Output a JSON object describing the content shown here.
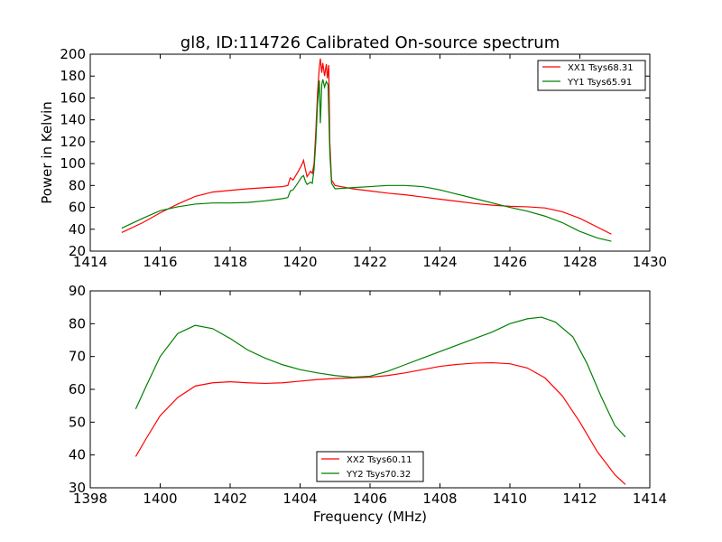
{
  "chart_data": [
    {
      "type": "line",
      "title": "gl8, ID:114726 Calibrated On-source spectrum",
      "xlabel": "",
      "ylabel": "Power in Kelvin",
      "xlim": [
        1414,
        1430
      ],
      "ylim": [
        20,
        200
      ],
      "xticks": [
        1414,
        1416,
        1418,
        1420,
        1422,
        1424,
        1426,
        1428,
        1430
      ],
      "yticks": [
        20,
        40,
        60,
        80,
        100,
        120,
        140,
        160,
        180,
        200
      ],
      "legend_position": "top-right",
      "series": [
        {
          "name": "XX1 Tsys68.31",
          "color": "#ff0000",
          "points": [
            [
              1414.9,
              37
            ],
            [
              1415.5,
              46
            ],
            [
              1416,
              55
            ],
            [
              1416.5,
              63
            ],
            [
              1417,
              70
            ],
            [
              1417.5,
              74
            ],
            [
              1418,
              75.5
            ],
            [
              1418.5,
              77
            ],
            [
              1419,
              78
            ],
            [
              1419.5,
              79
            ],
            [
              1419.65,
              80
            ],
            [
              1419.72,
              87
            ],
            [
              1419.8,
              85
            ],
            [
              1419.95,
              93
            ],
            [
              1420.05,
              99
            ],
            [
              1420.1,
              103
            ],
            [
              1420.15,
              95
            ],
            [
              1420.2,
              88
            ],
            [
              1420.3,
              93
            ],
            [
              1420.35,
              91
            ],
            [
              1420.4,
              100
            ],
            [
              1420.45,
              130
            ],
            [
              1420.5,
              165
            ],
            [
              1420.55,
              188
            ],
            [
              1420.58,
              196
            ],
            [
              1420.62,
              183
            ],
            [
              1420.65,
              192
            ],
            [
              1420.7,
              180
            ],
            [
              1420.75,
              191
            ],
            [
              1420.78,
              178
            ],
            [
              1420.82,
              190
            ],
            [
              1420.85,
              120
            ],
            [
              1420.9,
              85
            ],
            [
              1421,
              80
            ],
            [
              1421.5,
              77
            ],
            [
              1422,
              75
            ],
            [
              1422.5,
              73
            ],
            [
              1423,
              71.5
            ],
            [
              1423.5,
              69.5
            ],
            [
              1424,
              67.5
            ],
            [
              1424.5,
              65.5
            ],
            [
              1425,
              63.5
            ],
            [
              1425.5,
              62
            ],
            [
              1426,
              61
            ],
            [
              1426.5,
              60.5
            ],
            [
              1427,
              59.5
            ],
            [
              1427.5,
              56
            ],
            [
              1428,
              50
            ],
            [
              1428.5,
              42
            ],
            [
              1428.9,
              35.5
            ]
          ]
        },
        {
          "name": "YY1 Tsys65.91",
          "color": "#008000",
          "points": [
            [
              1414.9,
              41
            ],
            [
              1415.5,
              50
            ],
            [
              1416,
              57
            ],
            [
              1416.5,
              60.5
            ],
            [
              1417,
              63
            ],
            [
              1417.5,
              64
            ],
            [
              1418,
              64
            ],
            [
              1418.5,
              64.5
            ],
            [
              1419,
              66
            ],
            [
              1419.5,
              68
            ],
            [
              1419.65,
              69
            ],
            [
              1419.72,
              75
            ],
            [
              1419.8,
              76
            ],
            [
              1419.95,
              83
            ],
            [
              1420.05,
              88
            ],
            [
              1420.1,
              89
            ],
            [
              1420.15,
              84
            ],
            [
              1420.2,
              81
            ],
            [
              1420.3,
              83
            ],
            [
              1420.35,
              82
            ],
            [
              1420.4,
              95
            ],
            [
              1420.45,
              120
            ],
            [
              1420.5,
              155
            ],
            [
              1420.55,
              176
            ],
            [
              1420.58,
              137
            ],
            [
              1420.62,
              172
            ],
            [
              1420.65,
              177
            ],
            [
              1420.7,
              170
            ],
            [
              1420.75,
              175
            ],
            [
              1420.8,
              172
            ],
            [
              1420.85,
              110
            ],
            [
              1420.9,
              82
            ],
            [
              1421,
              77
            ],
            [
              1421.5,
              78
            ],
            [
              1422,
              79
            ],
            [
              1422.5,
              80
            ],
            [
              1423,
              80
            ],
            [
              1423.5,
              79
            ],
            [
              1424,
              76
            ],
            [
              1424.5,
              72
            ],
            [
              1425,
              68
            ],
            [
              1425.5,
              64
            ],
            [
              1426,
              60
            ],
            [
              1426.5,
              56.5
            ],
            [
              1427,
              52
            ],
            [
              1427.5,
              46
            ],
            [
              1428,
              38
            ],
            [
              1428.5,
              32
            ],
            [
              1428.9,
              29
            ]
          ]
        }
      ]
    },
    {
      "type": "line",
      "title": "",
      "xlabel": "Frequency (MHz)",
      "ylabel": "",
      "xlim": [
        1398,
        1414
      ],
      "ylim": [
        30,
        90
      ],
      "xticks": [
        1398,
        1400,
        1402,
        1404,
        1406,
        1408,
        1410,
        1412,
        1414
      ],
      "yticks": [
        30,
        40,
        50,
        60,
        70,
        80,
        90
      ],
      "legend_position": "bottom-center",
      "series": [
        {
          "name": "XX2 Tsys60.11",
          "color": "#ff0000",
          "points": [
            [
              1399.3,
              39.5
            ],
            [
              1399.6,
              45
            ],
            [
              1400,
              52
            ],
            [
              1400.5,
              57.5
            ],
            [
              1401,
              61
            ],
            [
              1401.5,
              62
            ],
            [
              1402,
              62.3
            ],
            [
              1402.5,
              62
            ],
            [
              1403,
              61.8
            ],
            [
              1403.5,
              62
            ],
            [
              1404,
              62.5
            ],
            [
              1404.5,
              63
            ],
            [
              1405,
              63.3
            ],
            [
              1405.5,
              63.5
            ],
            [
              1406,
              63.7
            ],
            [
              1406.5,
              64.2
            ],
            [
              1407,
              65
            ],
            [
              1407.5,
              66
            ],
            [
              1408,
              67
            ],
            [
              1408.5,
              67.6
            ],
            [
              1409,
              68
            ],
            [
              1409.5,
              68.1
            ],
            [
              1410,
              67.8
            ],
            [
              1410.5,
              66.5
            ],
            [
              1411,
              63.5
            ],
            [
              1411.5,
              58
            ],
            [
              1412,
              50
            ],
            [
              1412.5,
              41
            ],
            [
              1413,
              34
            ],
            [
              1413.3,
              31
            ]
          ]
        },
        {
          "name": "YY2 Tsys70.32",
          "color": "#008000",
          "points": [
            [
              1399.3,
              54
            ],
            [
              1399.6,
              61
            ],
            [
              1400,
              70
            ],
            [
              1400.5,
              77
            ],
            [
              1401,
              79.5
            ],
            [
              1401.5,
              78.5
            ],
            [
              1402,
              75.5
            ],
            [
              1402.5,
              72
            ],
            [
              1403,
              69.5
            ],
            [
              1403.5,
              67.5
            ],
            [
              1404,
              66
            ],
            [
              1404.5,
              65
            ],
            [
              1405,
              64.2
            ],
            [
              1405.5,
              63.7
            ],
            [
              1406,
              64
            ],
            [
              1406.5,
              65.5
            ],
            [
              1407,
              67.5
            ],
            [
              1407.5,
              69.5
            ],
            [
              1408,
              71.5
            ],
            [
              1408.5,
              73.5
            ],
            [
              1409,
              75.5
            ],
            [
              1409.5,
              77.5
            ],
            [
              1410,
              80
            ],
            [
              1410.5,
              81.5
            ],
            [
              1410.9,
              82
            ],
            [
              1411.3,
              80.5
            ],
            [
              1411.8,
              76
            ],
            [
              1412.2,
              68
            ],
            [
              1412.6,
              58
            ],
            [
              1413,
              49
            ],
            [
              1413.3,
              45.5
            ]
          ]
        }
      ]
    }
  ]
}
